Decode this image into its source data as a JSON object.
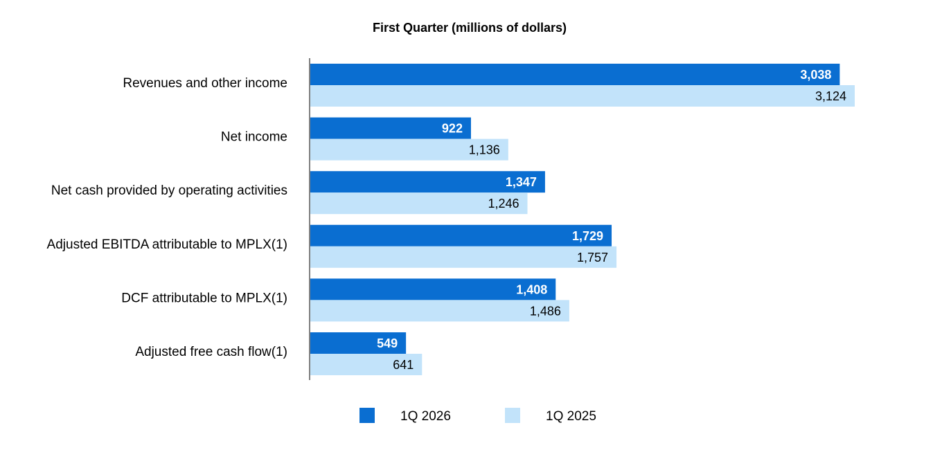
{
  "chart_data": {
    "type": "bar",
    "orientation": "horizontal",
    "title": "First Quarter (millions of dollars)",
    "categories": [
      "Revenues and other income",
      "Net income",
      "Net cash provided by operating activities",
      "Adjusted EBITDA attributable to MPLX(1)",
      "DCF attributable to MPLX(1)",
      "Adjusted free cash flow(1)"
    ],
    "series": [
      {
        "name": "1Q 2026",
        "color": "#0A6ED1",
        "values": [
          3038,
          922,
          1347,
          1729,
          1408,
          549
        ],
        "labels": [
          "3,038",
          "922",
          "1,347",
          "1,729",
          "1,408",
          "549"
        ]
      },
      {
        "name": "1Q 2025",
        "color": "#C2E3FA",
        "values": [
          3124,
          1136,
          1246,
          1757,
          1486,
          641
        ],
        "labels": [
          "3,124",
          "1,136",
          "1,246",
          "1,757",
          "1,486",
          "641"
        ]
      }
    ],
    "xlim": [
      0,
      3200
    ],
    "grid": false,
    "legend_position": "bottom-center"
  }
}
